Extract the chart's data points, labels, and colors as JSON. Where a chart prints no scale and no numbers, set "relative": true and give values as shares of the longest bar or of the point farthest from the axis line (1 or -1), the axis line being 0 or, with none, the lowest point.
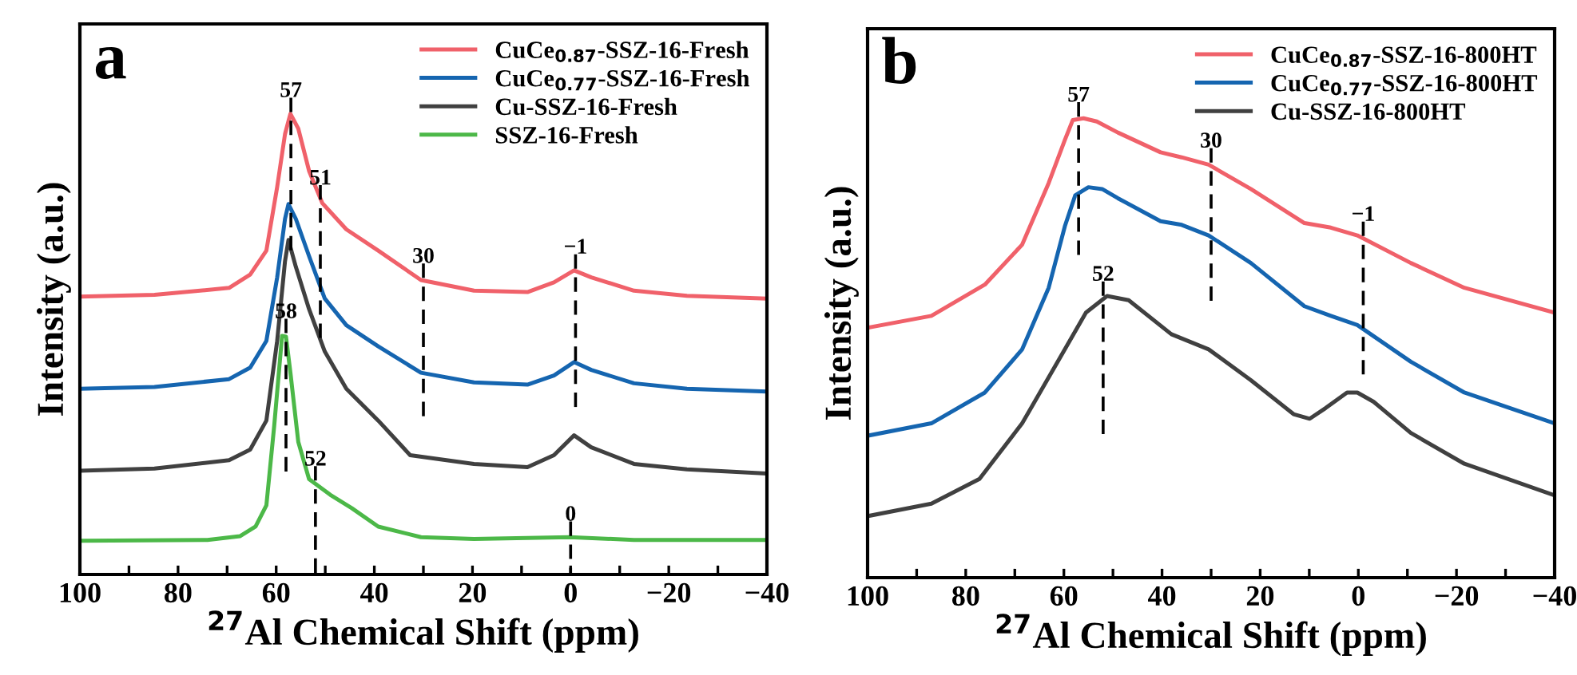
{
  "chart_data": [
    {
      "type": "line",
      "relative": true,
      "xlabel": "$^{27}$Al Chemical Shift (ppm)",
      "ylabel": "Intensity (a.u.)",
      "xlim": [
        100,
        -40
      ],
      "xticks": [
        100,
        {
          "value": 90,
          "label": null
        },
        80,
        {
          "value": 70,
          "label": null
        },
        60,
        {
          "value": 50,
          "label": null
        },
        40,
        {
          "value": 30,
          "label": null
        },
        20,
        {
          "value": 10,
          "label": null
        },
        0,
        {
          "value": -10,
          "label": null
        },
        {
          "value": -20,
          "label": "−20"
        },
        {
          "value": -30,
          "label": null
        },
        {
          "value": -40,
          "label": "−40"
        }
      ],
      "tick_labels": "x",
      "legend": "top right",
      "grid": false,
      "line_style": "solid",
      "marker": "none",
      "series": [
        {
          "name": "CuCe$_{0.87}$-SSZ-16-Fresh",
          "color": "#f0616a",
          "x": [
            100,
            84.8,
            69.6,
            65.3,
            62.0,
            59.8,
            58.2,
            57.1,
            55.5,
            53.3,
            50.6,
            45.7,
            39.2,
            30.5,
            19.7,
            8.8,
            3.4,
            -0.7,
            -4.2,
            -12.9,
            -23.7,
            -40
          ],
          "values": [
            0.603,
            0.607,
            0.622,
            0.651,
            0.703,
            0.841,
            0.956,
            1.0,
            0.968,
            0.876,
            0.806,
            0.749,
            0.703,
            0.639,
            0.616,
            0.613,
            0.634,
            0.66,
            0.645,
            0.616,
            0.605,
            0.599
          ]
        },
        {
          "name": "CuCe$_{0.77}$-SSZ-16-Fresh",
          "color": "#1565b0",
          "x": [
            100,
            84.8,
            69.6,
            65.3,
            62.0,
            59.8,
            58.2,
            57.5,
            56.0,
            53.3,
            50.1,
            45.7,
            39.2,
            30.5,
            19.7,
            8.8,
            3.4,
            -0.7,
            -4.2,
            -12.9,
            -23.7,
            -40
          ],
          "values": [
            0.403,
            0.407,
            0.424,
            0.449,
            0.507,
            0.645,
            0.772,
            0.804,
            0.772,
            0.691,
            0.599,
            0.541,
            0.495,
            0.438,
            0.417,
            0.412,
            0.432,
            0.461,
            0.444,
            0.415,
            0.403,
            0.397
          ]
        },
        {
          "name": "Cu-SSZ-16-Fresh",
          "color": "#404040",
          "x": [
            100,
            84.8,
            69.6,
            65.3,
            62.0,
            59.8,
            58.2,
            57.5,
            56.0,
            53.3,
            50.1,
            45.7,
            39.2,
            32.7,
            19.7,
            8.8,
            3.4,
            -0.7,
            -4.2,
            -12.9,
            -23.7,
            -40
          ],
          "values": [
            0.225,
            0.23,
            0.248,
            0.271,
            0.334,
            0.507,
            0.68,
            0.726,
            0.668,
            0.576,
            0.484,
            0.403,
            0.334,
            0.259,
            0.24,
            0.233,
            0.259,
            0.302,
            0.276,
            0.24,
            0.228,
            0.219
          ]
        },
        {
          "name": "SSZ-16-Fresh",
          "color": "#4cb848",
          "x": [
            100,
            74.0,
            67.4,
            64.2,
            62.0,
            60.4,
            58.8,
            58.0,
            57.1,
            55.5,
            53.3,
            49.0,
            44.6,
            39.2,
            30.5,
            19.7,
            0.2,
            -12.9,
            -40
          ],
          "values": [
            0.073,
            0.075,
            0.083,
            0.104,
            0.15,
            0.323,
            0.518,
            0.516,
            0.438,
            0.288,
            0.207,
            0.173,
            0.144,
            0.104,
            0.081,
            0.077,
            0.081,
            0.075,
            0.075
          ]
        }
      ],
      "annotations": [
        "a",
        {
          "text": "57",
          "x": 57,
          "y": 1.0
        },
        {
          "text": "51",
          "x": 51,
          "y": 0.81
        },
        {
          "text": "30",
          "x": 30,
          "y": 0.64
        },
        {
          "text": "−1",
          "x": -1,
          "y": 0.66
        },
        {
          "text": "58",
          "x": 58,
          "y": 0.52
        },
        {
          "text": "52",
          "x": 52,
          "y": 0.2
        },
        {
          "text": "0",
          "x": 0,
          "y": 0.08
        }
      ]
    },
    {
      "type": "line",
      "relative": true,
      "xlabel": "$^{27}$Al Chemical Shift (ppm)",
      "ylabel": "Intensity (a.u.)",
      "xlim": [
        100,
        -40
      ],
      "xticks": [
        100,
        {
          "value": 90,
          "label": null
        },
        80,
        {
          "value": 70,
          "label": null
        },
        60,
        {
          "value": 50,
          "label": null
        },
        40,
        {
          "value": 30,
          "label": null
        },
        20,
        {
          "value": 10,
          "label": null
        },
        0,
        {
          "value": -10,
          "label": null
        },
        {
          "value": -20,
          "label": "−20"
        },
        {
          "value": -30,
          "label": null
        },
        {
          "value": -40,
          "label": "−40"
        }
      ],
      "tick_labels": "x",
      "legend": "top right",
      "grid": false,
      "line_style": "solid",
      "marker": "none",
      "series": [
        {
          "name": "CuCe$_{0.87}$-SSZ-16-800HT",
          "color": "#f0616a",
          "x": [
            100,
            87.0,
            76.1,
            68.5,
            63.1,
            59.8,
            58.2,
            56.0,
            53.3,
            49.0,
            40.3,
            36.0,
            30.5,
            21.9,
            11.0,
            5.6,
            0.2,
            -10.7,
            -21.6,
            -40
          ],
          "values": [
            0.544,
            0.57,
            0.638,
            0.725,
            0.859,
            0.953,
            0.996,
            1.0,
            0.993,
            0.969,
            0.926,
            0.915,
            0.899,
            0.846,
            0.772,
            0.762,
            0.745,
            0.685,
            0.631,
            0.577
          ]
        },
        {
          "name": "CuCe$_{0.77}$-SSZ-16-800HT",
          "color": "#1565b0",
          "x": [
            100,
            87.0,
            76.1,
            68.5,
            63.1,
            59.8,
            57.7,
            55.0,
            52.2,
            49.0,
            40.3,
            36.0,
            30.5,
            21.9,
            11.0,
            5.6,
            0.2,
            -10.7,
            -21.6,
            -40
          ],
          "values": [
            0.309,
            0.336,
            0.403,
            0.497,
            0.631,
            0.765,
            0.832,
            0.85,
            0.846,
            0.826,
            0.776,
            0.768,
            0.745,
            0.685,
            0.591,
            0.57,
            0.55,
            0.47,
            0.403,
            0.336
          ]
        },
        {
          "name": "Cu-SSZ-16-800HT",
          "color": "#404040",
          "x": [
            100,
            87.0,
            77.2,
            68.5,
            59.8,
            55.5,
            51.2,
            46.8,
            38.1,
            30.5,
            21.9,
            13.2,
            9.9,
            6.7,
            2.3,
            0.2,
            -3.1,
            -10.7,
            -21.6,
            -40
          ],
          "values": [
            0.134,
            0.161,
            0.215,
            0.336,
            0.497,
            0.577,
            0.613,
            0.604,
            0.53,
            0.497,
            0.43,
            0.356,
            0.346,
            0.369,
            0.403,
            0.403,
            0.383,
            0.315,
            0.248,
            0.179
          ]
        }
      ],
      "annotations": [
        "b",
        {
          "text": "57",
          "x": 57,
          "y": 1.0
        },
        {
          "text": "30",
          "x": 30,
          "y": 0.9
        },
        {
          "text": "−1",
          "x": -1,
          "y": 0.74
        },
        {
          "text": "52",
          "x": 52,
          "y": 0.61
        }
      ]
    }
  ]
}
